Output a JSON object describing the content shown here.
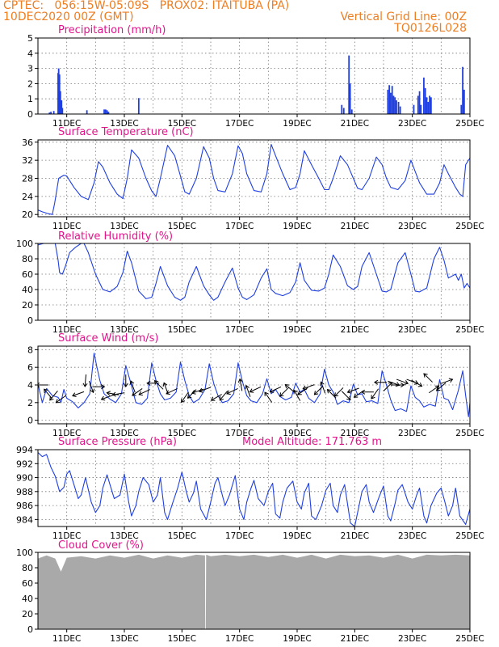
{
  "header": {
    "line1_left": "CPTEC:   056:15W-05:09S   PROX02: ITAITUBA (PA)",
    "line2_left": "10DEC2020 00Z (GMT)",
    "line2_right": "Vertical Grid Line: 00Z",
    "line3_right": "TQ0126L028"
  },
  "colors": {
    "header": "#ee7e22",
    "panel_title": "#e0158a",
    "series": "#1f3fe0",
    "bars": "#1f3fe0",
    "cloud": "#a9a9a9",
    "axis": "#000000"
  },
  "x_axis": {
    "day_start": 10.0,
    "day_end": 25.0,
    "tick_labels": [
      "11DEC",
      "13DEC",
      "15DEC",
      "17DEC",
      "19DEC",
      "21DEC",
      "23DEC",
      "25DEC"
    ],
    "tick_days": [
      11,
      13,
      15,
      17,
      19,
      21,
      23,
      25
    ],
    "vertical_grid_days": [
      11,
      12,
      13,
      14,
      15,
      16,
      17,
      18,
      19,
      20,
      21,
      22,
      23,
      24
    ]
  },
  "chart_data": [
    {
      "id": "precip",
      "type": "bar",
      "title": "Precipitation (mm/h)",
      "ylim": [
        0,
        5
      ],
      "yticks": [
        0,
        1,
        2,
        3,
        4,
        5
      ],
      "grid": true,
      "bars": [
        [
          10.4,
          0.1
        ],
        [
          10.45,
          0.15
        ],
        [
          10.55,
          0.2
        ],
        [
          10.7,
          2.7
        ],
        [
          10.72,
          3.0
        ],
        [
          10.75,
          2.6
        ],
        [
          10.78,
          1.5
        ],
        [
          10.82,
          0.9
        ],
        [
          10.85,
          0.4
        ],
        [
          11.7,
          0.25
        ],
        [
          12.3,
          0.3
        ],
        [
          12.35,
          0.3
        ],
        [
          12.4,
          0.25
        ],
        [
          12.45,
          0.15
        ],
        [
          13.5,
          1.05
        ],
        [
          20.55,
          0.6
        ],
        [
          20.62,
          0.4
        ],
        [
          20.8,
          3.85
        ],
        [
          20.84,
          2.0
        ],
        [
          20.9,
          0.3
        ],
        [
          22.15,
          1.6
        ],
        [
          22.2,
          1.9
        ],
        [
          22.25,
          1.4
        ],
        [
          22.3,
          1.85
        ],
        [
          22.35,
          1.2
        ],
        [
          22.4,
          1.1
        ],
        [
          22.45,
          0.9
        ],
        [
          22.52,
          0.8
        ],
        [
          22.58,
          0.5
        ],
        [
          23.05,
          0.6
        ],
        [
          23.2,
          1.2
        ],
        [
          23.25,
          1.5
        ],
        [
          23.3,
          0.6
        ],
        [
          23.4,
          2.4
        ],
        [
          23.45,
          1.7
        ],
        [
          23.5,
          1.1
        ],
        [
          23.55,
          0.8
        ],
        [
          23.6,
          1.2
        ],
        [
          23.65,
          1.1
        ],
        [
          24.7,
          0.6
        ],
        [
          24.75,
          3.1
        ],
        [
          24.8,
          1.6
        ]
      ]
    },
    {
      "id": "temp",
      "type": "line",
      "title": "Surface Temperature (nC)",
      "ylim": [
        19.5,
        36.5
      ],
      "yticks": [
        20,
        24,
        28,
        32,
        36
      ],
      "grid": true,
      "x": [
        10.0,
        10.15,
        10.35,
        10.5,
        10.58,
        10.72,
        10.9,
        11.0,
        11.25,
        11.5,
        11.75,
        11.95,
        12.1,
        12.25,
        12.5,
        12.75,
        12.95,
        13.1,
        13.25,
        13.5,
        13.75,
        13.95,
        14.1,
        14.25,
        14.5,
        14.75,
        14.95,
        15.1,
        15.25,
        15.5,
        15.75,
        15.95,
        16.1,
        16.25,
        16.5,
        16.75,
        16.95,
        17.1,
        17.25,
        17.5,
        17.75,
        17.95,
        18.1,
        18.25,
        18.5,
        18.75,
        18.95,
        19.1,
        19.25,
        19.5,
        19.75,
        19.95,
        20.1,
        20.25,
        20.5,
        20.75,
        20.95,
        21.1,
        21.25,
        21.5,
        21.75,
        21.95,
        22.1,
        22.25,
        22.5,
        22.75,
        22.95,
        23.1,
        23.25,
        23.5,
        23.75,
        23.95,
        24.1,
        24.25,
        24.5,
        24.65,
        24.75,
        24.85,
        25.0
      ],
      "y": [
        21,
        20.6,
        20.2,
        20.0,
        22.5,
        28,
        28.7,
        28.5,
        26,
        24,
        23.3,
        27,
        31.7,
        30.5,
        27,
        24.5,
        23.5,
        28,
        34.3,
        32.5,
        28,
        25.2,
        24,
        28,
        35.3,
        33,
        28.5,
        25,
        24.5,
        28,
        35,
        32.5,
        28,
        25.3,
        25,
        29,
        35.2,
        33.5,
        29,
        25.3,
        25,
        29,
        35.5,
        33,
        29,
        25.5,
        26,
        29,
        34.1,
        31,
        28,
        25.5,
        25.5,
        28,
        33,
        31,
        28,
        25.8,
        25.5,
        28,
        32.7,
        31,
        28,
        26,
        25.5,
        27.5,
        32,
        29.5,
        27,
        24.5,
        24.5,
        27,
        31,
        29,
        26,
        24.5,
        24,
        31,
        32.5
      ]
    },
    {
      "id": "rh",
      "type": "line",
      "title": "Relative Humidity (%)",
      "ylim": [
        0,
        100
      ],
      "yticks": [
        0,
        20,
        40,
        60,
        80,
        100
      ],
      "grid": true,
      "x": [
        10.0,
        10.2,
        10.4,
        10.6,
        10.7,
        10.75,
        10.85,
        10.95,
        11.1,
        11.3,
        11.5,
        11.6,
        11.75,
        12.0,
        12.25,
        12.5,
        12.75,
        12.95,
        13.1,
        13.25,
        13.5,
        13.75,
        13.95,
        14.1,
        14.25,
        14.5,
        14.75,
        14.95,
        15.1,
        15.25,
        15.5,
        15.75,
        15.95,
        16.1,
        16.25,
        16.5,
        16.75,
        16.95,
        17.1,
        17.25,
        17.5,
        17.75,
        17.95,
        18.1,
        18.25,
        18.5,
        18.75,
        18.95,
        19.1,
        19.25,
        19.5,
        19.75,
        19.95,
        20.1,
        20.25,
        20.5,
        20.75,
        20.95,
        21.1,
        21.25,
        21.5,
        21.75,
        21.95,
        22.1,
        22.25,
        22.5,
        22.75,
        22.95,
        23.1,
        23.25,
        23.5,
        23.75,
        23.95,
        24.1,
        24.25,
        24.5,
        24.6,
        24.7,
        24.8,
        24.9,
        25.0
      ],
      "y": [
        98,
        100,
        100,
        100,
        78,
        62,
        60,
        70,
        88,
        95,
        100,
        100,
        88,
        60,
        40,
        37,
        44,
        62,
        90,
        75,
        38,
        28,
        30,
        48,
        70,
        45,
        30,
        26,
        30,
        50,
        70,
        45,
        33,
        26,
        30,
        50,
        68,
        42,
        30,
        27,
        33,
        55,
        67,
        40,
        35,
        32,
        36,
        50,
        75,
        52,
        39,
        38,
        42,
        60,
        85,
        70,
        45,
        40,
        44,
        70,
        88,
        60,
        38,
        37,
        40,
        75,
        88,
        60,
        38,
        37,
        42,
        80,
        95,
        78,
        55,
        60,
        52,
        60,
        42,
        48,
        42
      ]
    },
    {
      "id": "wind",
      "type": "line",
      "title": "Surface Wind (m/s)",
      "ylim": [
        -0.4,
        8.4
      ],
      "yticks": [
        0,
        2,
        4,
        6,
        8
      ],
      "grid": true,
      "x": [
        10.0,
        10.15,
        10.3,
        10.5,
        10.7,
        10.8,
        10.9,
        11.0,
        11.2,
        11.4,
        11.6,
        11.8,
        11.95,
        12.05,
        12.15,
        12.3,
        12.5,
        12.7,
        12.9,
        13.05,
        13.2,
        13.4,
        13.6,
        13.8,
        13.95,
        14.1,
        14.25,
        14.4,
        14.6,
        14.8,
        14.95,
        15.1,
        15.25,
        15.4,
        15.6,
        15.8,
        15.95,
        16.1,
        16.25,
        16.4,
        16.6,
        16.8,
        16.95,
        17.1,
        17.25,
        17.4,
        17.6,
        17.8,
        17.95,
        18.1,
        18.25,
        18.4,
        18.6,
        18.8,
        18.95,
        19.1,
        19.25,
        19.4,
        19.6,
        19.8,
        19.95,
        20.1,
        20.25,
        20.4,
        20.6,
        20.8,
        20.95,
        21.1,
        21.25,
        21.4,
        21.6,
        21.8,
        21.95,
        22.1,
        22.25,
        22.4,
        22.6,
        22.8,
        22.95,
        23.1,
        23.25,
        23.4,
        23.6,
        23.8,
        23.95,
        24.1,
        24.25,
        24.4,
        24.6,
        24.75,
        24.85,
        24.95,
        25.0
      ],
      "y": [
        4.1,
        2.0,
        3.6,
        2.8,
        2.6,
        2.0,
        3.5,
        2.5,
        2.1,
        1.4,
        2.0,
        3.0,
        7.6,
        6.0,
        4.5,
        3.0,
        2.4,
        2.0,
        3.0,
        6.2,
        4.5,
        2.0,
        1.8,
        2.5,
        6.5,
        4.5,
        3.0,
        2.3,
        2.5,
        3.2,
        6.6,
        4.5,
        2.8,
        2.0,
        2.4,
        3.5,
        6.4,
        4.2,
        2.8,
        2.0,
        2.2,
        3.0,
        6.5,
        4.4,
        2.8,
        2.2,
        2.0,
        3.0,
        4.7,
        3.0,
        3.5,
        2.7,
        2.3,
        2.6,
        4.2,
        3.2,
        3.5,
        2.5,
        2.0,
        3.0,
        5.8,
        4.0,
        3.2,
        1.8,
        2.2,
        2.0,
        4.1,
        2.9,
        3.0,
        2.1,
        2.2,
        1.9,
        5.6,
        4.0,
        2.3,
        1.1,
        1.3,
        1.0,
        3.9,
        2.6,
        2.2,
        1.5,
        1.8,
        1.6,
        4.6,
        2.5,
        2.3,
        1.2,
        3.4,
        5.6,
        2.8,
        0.4,
        2.0
      ]
    },
    {
      "id": "pressure",
      "type": "line",
      "title": "Surface Pressure (hPa)",
      "annotation": "Model Altitude: 171.763 m",
      "ylim": [
        983.0,
        994.0
      ],
      "yticks": [
        984,
        986,
        988,
        990,
        992,
        994
      ],
      "grid": true,
      "x": [
        10.0,
        10.15,
        10.3,
        10.45,
        10.6,
        10.75,
        10.9,
        11.0,
        11.1,
        11.25,
        11.4,
        11.5,
        11.65,
        11.85,
        12.0,
        12.15,
        12.25,
        12.4,
        12.5,
        12.65,
        12.85,
        13.0,
        13.15,
        13.25,
        13.4,
        13.5,
        13.65,
        13.85,
        14.0,
        14.15,
        14.25,
        14.4,
        14.5,
        14.65,
        14.85,
        15.0,
        15.15,
        15.25,
        15.4,
        15.5,
        15.65,
        15.85,
        16.0,
        16.15,
        16.25,
        16.4,
        16.5,
        16.65,
        16.85,
        17.0,
        17.15,
        17.25,
        17.4,
        17.5,
        17.65,
        17.85,
        18.0,
        18.15,
        18.25,
        18.4,
        18.5,
        18.65,
        18.85,
        19.0,
        19.15,
        19.25,
        19.4,
        19.5,
        19.65,
        19.85,
        20.0,
        20.15,
        20.25,
        20.4,
        20.5,
        20.65,
        20.85,
        21.0,
        21.15,
        21.25,
        21.4,
        21.5,
        21.65,
        21.85,
        22.0,
        22.15,
        22.25,
        22.4,
        22.5,
        22.65,
        22.85,
        23.0,
        23.15,
        23.25,
        23.4,
        23.5,
        23.65,
        23.85,
        24.0,
        24.15,
        24.25,
        24.4,
        24.5,
        24.65,
        24.85,
        25.0
      ],
      "y": [
        993.6,
        993.0,
        993.3,
        991.5,
        990.2,
        988.0,
        988.6,
        990.5,
        991.0,
        989.0,
        987.0,
        987.5,
        990.0,
        986.5,
        985.0,
        986.0,
        988.5,
        990.4,
        989.0,
        987.0,
        987.5,
        990.5,
        986.5,
        984.5,
        986.0,
        988.0,
        990.0,
        989.0,
        986.5,
        987.5,
        990.0,
        985.0,
        984.0,
        986.0,
        988.5,
        990.8,
        988.0,
        986.5,
        987.8,
        989.5,
        985.5,
        984.0,
        986.5,
        989.2,
        990.0,
        987.5,
        986.0,
        987.5,
        990.3,
        985.5,
        984.0,
        986.5,
        988.5,
        989.6,
        987.0,
        986.0,
        988.0,
        989.2,
        984.8,
        984.2,
        986.5,
        988.5,
        989.5,
        986.5,
        985.5,
        987.8,
        989.2,
        984.5,
        984.0,
        986.0,
        988.2,
        989.2,
        986.0,
        985.0,
        987.5,
        989.0,
        983.5,
        983.0,
        986.0,
        988.0,
        989.0,
        986.5,
        985.0,
        987.3,
        988.8,
        984.5,
        983.8,
        986.3,
        988.2,
        989.0,
        986.5,
        985.5,
        987.5,
        988.5,
        984.5,
        983.5,
        986.0,
        987.8,
        988.5,
        986.2,
        984.5,
        986.0,
        988.5,
        984.5,
        983.3,
        985.5
      ]
    },
    {
      "id": "cloud",
      "type": "area",
      "title": "Cloud Cover (%)",
      "ylim": [
        0,
        100
      ],
      "yticks": [
        0,
        20,
        40,
        60,
        80,
        100
      ],
      "grid": false,
      "x": [
        10.0,
        10.3,
        10.6,
        10.8,
        11.0,
        11.5,
        12.0,
        12.5,
        13.0,
        13.5,
        14.0,
        14.5,
        15.0,
        15.5,
        15.8,
        15.81,
        15.83,
        15.84,
        16.0,
        16.5,
        17.0,
        17.5,
        18.0,
        18.5,
        19.0,
        19.5,
        20.0,
        20.5,
        21.0,
        21.5,
        22.0,
        22.5,
        23.0,
        23.5,
        24.0,
        24.5,
        25.0
      ],
      "y": [
        92,
        96,
        92,
        75,
        93,
        95,
        92,
        96,
        93,
        97,
        92,
        96,
        93,
        97,
        96,
        0,
        0,
        97,
        95,
        97,
        95,
        97,
        94,
        97,
        93,
        97,
        92,
        97,
        95,
        96,
        93,
        97,
        92,
        97,
        96,
        97,
        96
      ]
    }
  ],
  "wind_arrows": [
    {
      "d": 10.15,
      "s": 4.0,
      "a": 180
    },
    {
      "d": 10.35,
      "s": 3.0,
      "a": 130
    },
    {
      "d": 10.55,
      "s": 2.8,
      "a": 230
    },
    {
      "d": 10.8,
      "s": 2.4,
      "a": 215
    },
    {
      "d": 11.4,
      "s": 3.0,
      "a": 200
    },
    {
      "d": 11.65,
      "s": 4.5,
      "a": 265
    },
    {
      "d": 11.85,
      "s": 3.8,
      "a": 290
    },
    {
      "d": 12.1,
      "s": 3.8,
      "a": 0
    },
    {
      "d": 12.4,
      "s": 2.6,
      "a": 200
    },
    {
      "d": 12.6,
      "s": 3.0,
      "a": 170
    },
    {
      "d": 12.8,
      "s": 3.0,
      "a": 190
    },
    {
      "d": 13.05,
      "s": 4.5,
      "a": 270
    },
    {
      "d": 13.3,
      "s": 3.8,
      "a": 110
    },
    {
      "d": 13.45,
      "s": 3.2,
      "a": 215
    },
    {
      "d": 13.7,
      "s": 3.2,
      "a": 205
    },
    {
      "d": 14.0,
      "s": 4.2,
      "a": 180
    },
    {
      "d": 14.2,
      "s": 4.0,
      "a": 135
    },
    {
      "d": 14.45,
      "s": 3.6,
      "a": 110
    },
    {
      "d": 14.65,
      "s": 3.3,
      "a": 205
    },
    {
      "d": 15.1,
      "s": 2.6,
      "a": 235
    },
    {
      "d": 15.35,
      "s": 3.0,
      "a": 225
    },
    {
      "d": 15.55,
      "s": 3.3,
      "a": 200
    },
    {
      "d": 15.8,
      "s": 3.5,
      "a": 200
    },
    {
      "d": 16.2,
      "s": 2.6,
      "a": 210
    },
    {
      "d": 16.45,
      "s": 2.8,
      "a": 230
    },
    {
      "d": 16.75,
      "s": 3.3,
      "a": 205
    },
    {
      "d": 17.05,
      "s": 4.0,
      "a": 100
    },
    {
      "d": 17.3,
      "s": 3.3,
      "a": 110
    },
    {
      "d": 17.55,
      "s": 3.5,
      "a": 205
    },
    {
      "d": 18.0,
      "s": 2.6,
      "a": 125
    },
    {
      "d": 18.25,
      "s": 3.5,
      "a": 205
    },
    {
      "d": 18.55,
      "s": 3.2,
      "a": 225
    },
    {
      "d": 18.75,
      "s": 3.6,
      "a": 140
    },
    {
      "d": 19.0,
      "s": 2.8,
      "a": 120
    },
    {
      "d": 19.2,
      "s": 3.3,
      "a": 215
    },
    {
      "d": 19.4,
      "s": 3.8,
      "a": 200
    },
    {
      "d": 19.75,
      "s": 3.4,
      "a": 225
    },
    {
      "d": 19.9,
      "s": 3.7,
      "a": 110
    },
    {
      "d": 20.2,
      "s": 3.0,
      "a": 135
    },
    {
      "d": 20.45,
      "s": 3.2,
      "a": 225
    },
    {
      "d": 20.7,
      "s": 2.8,
      "a": 315
    },
    {
      "d": 20.95,
      "s": 3.4,
      "a": 200
    },
    {
      "d": 21.15,
      "s": 3.0,
      "a": 215
    },
    {
      "d": 21.45,
      "s": 3.2,
      "a": 180
    },
    {
      "d": 21.7,
      "s": 3.0,
      "a": 235
    },
    {
      "d": 21.9,
      "s": 4.3,
      "a": 180
    },
    {
      "d": 22.15,
      "s": 3.8,
      "a": 45
    },
    {
      "d": 22.35,
      "s": 4.2,
      "a": 340
    },
    {
      "d": 22.5,
      "s": 4.0,
      "a": 0
    },
    {
      "d": 22.65,
      "s": 4.4,
      "a": 340
    },
    {
      "d": 23.0,
      "s": 4.4,
      "a": 340
    },
    {
      "d": 23.15,
      "s": 4.2,
      "a": 330
    },
    {
      "d": 23.55,
      "s": 4.8,
      "a": 135
    },
    {
      "d": 23.75,
      "s": 3.5,
      "a": 35
    },
    {
      "d": 24.0,
      "s": 3.8,
      "a": 220
    },
    {
      "d": 24.2,
      "s": 4.4,
      "a": 20
    }
  ],
  "layout_hint": "panels"
}
